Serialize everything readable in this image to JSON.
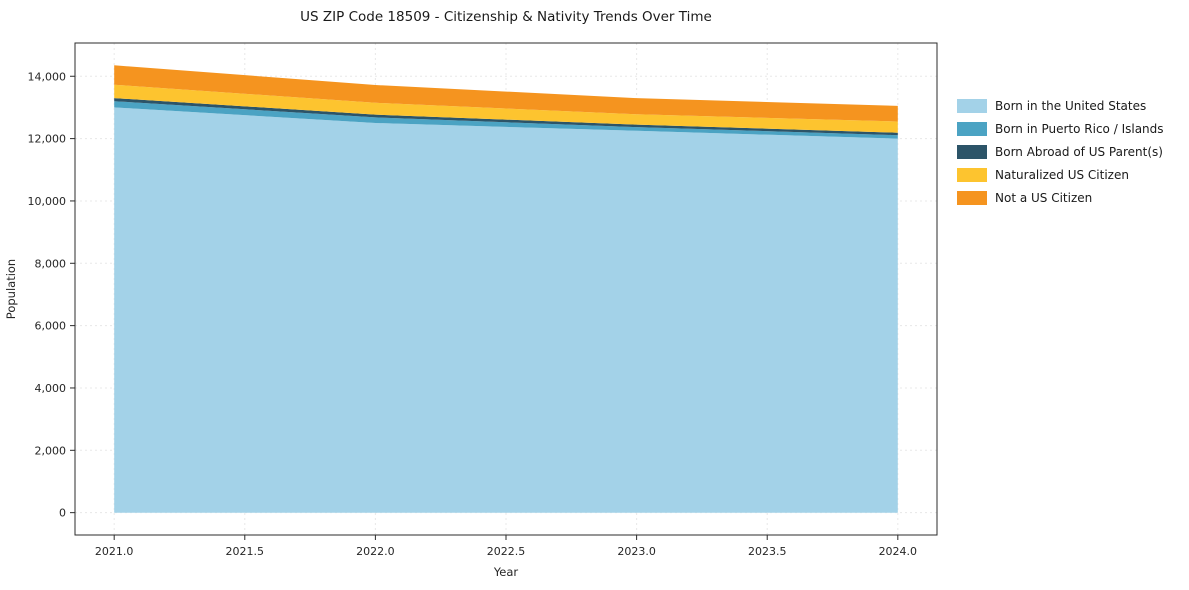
{
  "title": "US ZIP Code 18509 - Citizenship & Nativity Trends Over Time",
  "chart_data": {
    "type": "area",
    "stacked": true,
    "title": "US ZIP Code 18509 - Citizenship & Nativity Trends Over Time",
    "xlabel": "Year",
    "ylabel": "Population",
    "x": [
      2021,
      2022,
      2023,
      2024
    ],
    "series": [
      {
        "name": "Born in the United States",
        "color": "#a3d2e8",
        "values": [
          13000,
          12500,
          12250,
          12000
        ]
      },
      {
        "name": "Born in Puerto Rico / Islands",
        "color": "#4ba3c3",
        "values": [
          200,
          180,
          120,
          110
        ]
      },
      {
        "name": "Born Abroad of US Parent(s)",
        "color": "#2c5468",
        "values": [
          100,
          90,
          80,
          80
        ]
      },
      {
        "name": "Naturalized US Citizen",
        "color": "#fdc42f",
        "values": [
          430,
          380,
          330,
          360
        ]
      },
      {
        "name": "Not a US Citizen",
        "color": "#f5941f",
        "values": [
          620,
          570,
          520,
          500
        ]
      }
    ],
    "xlim": [
      2020.85,
      2024.15
    ],
    "ylim": [
      -717,
      15067
    ],
    "xticks": {
      "values": [
        2021,
        2021.5,
        2022,
        2022.5,
        2023,
        2023.5,
        2024
      ],
      "labels": [
        "2021.0",
        "2021.5",
        "2022.0",
        "2022.5",
        "2023.0",
        "2023.5",
        "2024.0"
      ]
    },
    "yticks": {
      "values": [
        0,
        2000,
        4000,
        6000,
        8000,
        10000,
        12000,
        14000
      ],
      "labels": [
        "0",
        "2,000",
        "4,000",
        "6,000",
        "8,000",
        "10,000",
        "12,000",
        "14,000"
      ]
    },
    "grid": true,
    "legend_position": "right"
  }
}
